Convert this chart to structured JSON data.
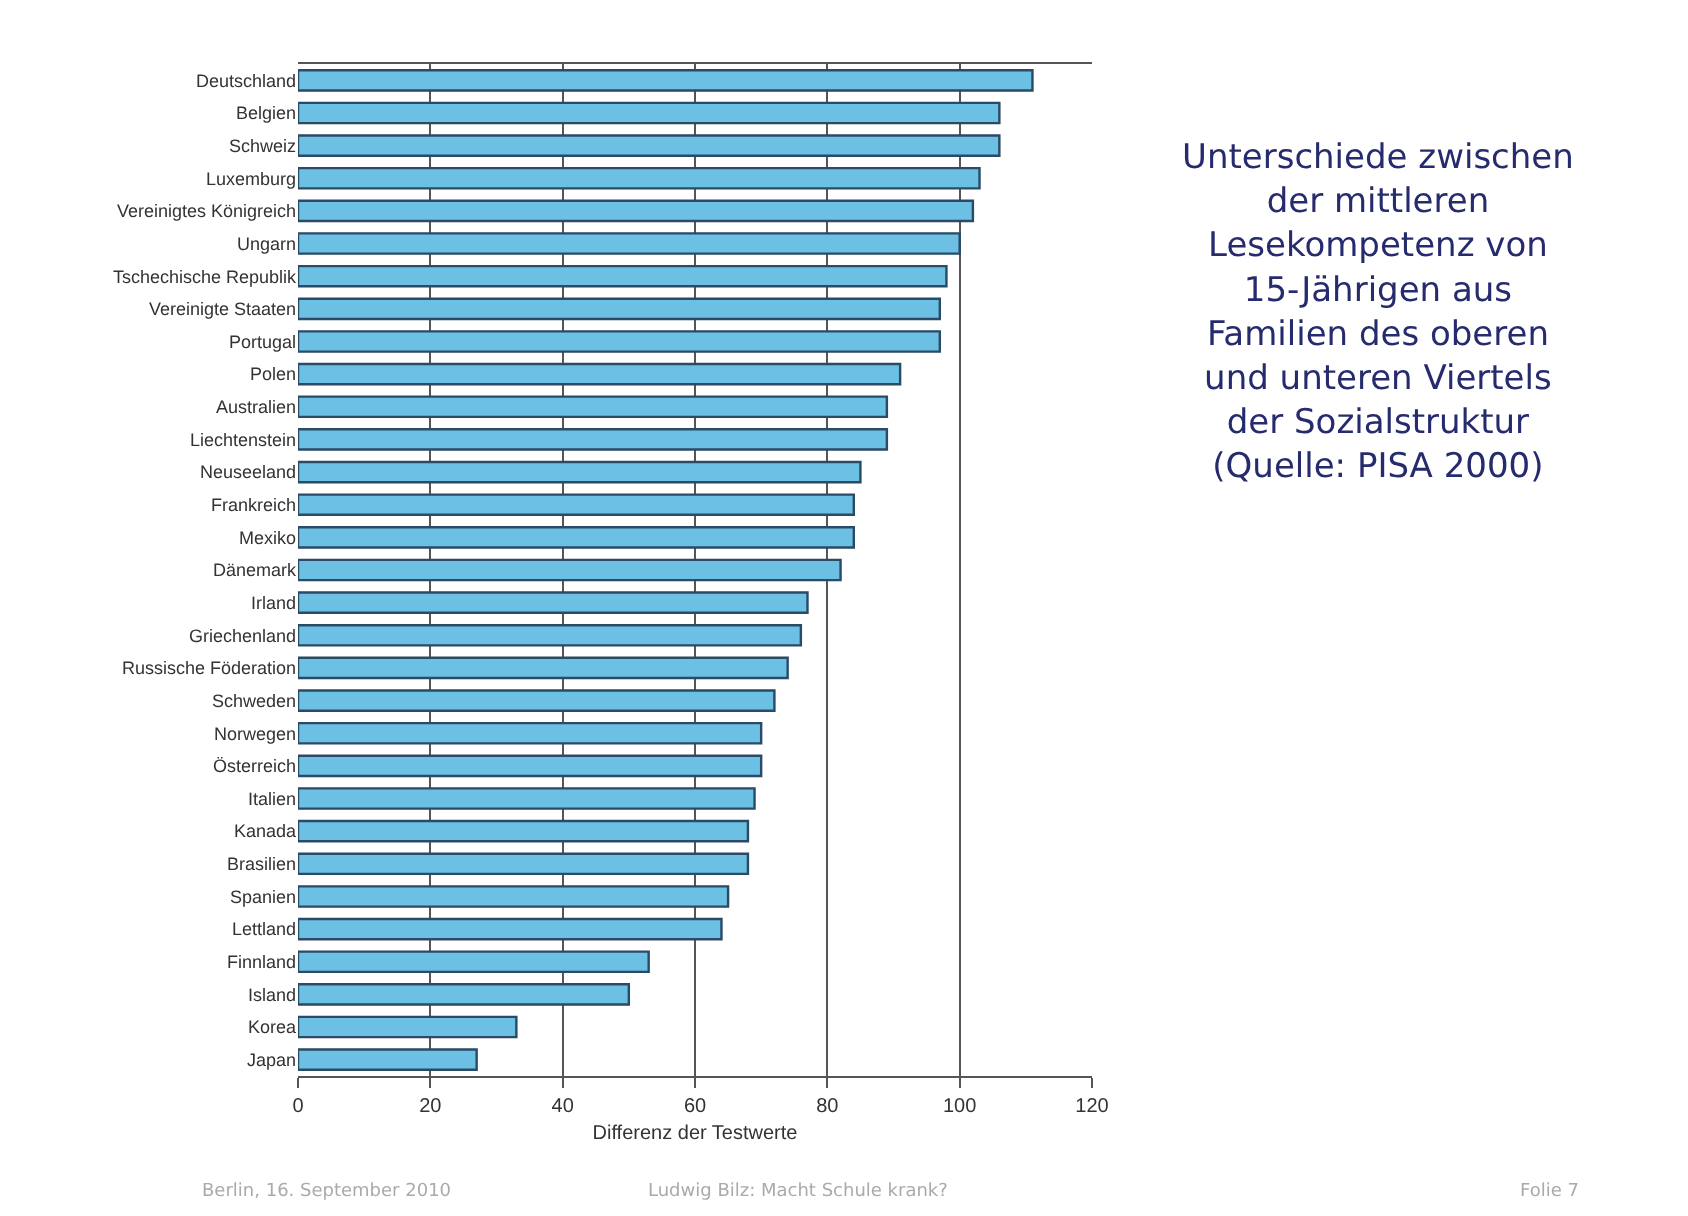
{
  "chart_data": {
    "type": "bar",
    "orientation": "horizontal",
    "title": "Unterschiede zwischen der mittleren Lesekompetenz von 15-Jährigen aus Familien des oberen und unteren Viertels der Sozialstruktur (Quelle: PISA 2000)",
    "xlabel": "Differenz der Testwerte",
    "categories": [
      "Deutschland",
      "Belgien",
      "Schweiz",
      "Luxemburg",
      "Vereinigtes Königreich",
      "Ungarn",
      "Tschechische Republik",
      "Vereinigte Staaten",
      "Portugal",
      "Polen",
      "Australien",
      "Liechtenstein",
      "Neuseeland",
      "Frankreich",
      "Mexiko",
      "Dänemark",
      "Irland",
      "Griechenland",
      "Russische Föderation",
      "Schweden",
      "Norwegen",
      "Österreich",
      "Italien",
      "Kanada",
      "Brasilien",
      "Spanien",
      "Lettland",
      "Finnland",
      "Island",
      "Korea",
      "Japan"
    ],
    "values": [
      111,
      106,
      106,
      103,
      102,
      100,
      98,
      97,
      97,
      91,
      89,
      89,
      85,
      84,
      84,
      82,
      77,
      76,
      74,
      72,
      70,
      70,
      69,
      68,
      68,
      65,
      64,
      53,
      50,
      33,
      27
    ],
    "color": "#6cc0e4",
    "xlim": [
      0,
      120
    ],
    "xticks": [
      0,
      20,
      40,
      60,
      80,
      100,
      120
    ],
    "grid": "x",
    "legend": false,
    "annotations": [
      "Berlin, 16. September 2010",
      "Ludwig Bilz: Macht Schule krank?",
      "Folie 7"
    ]
  }
}
